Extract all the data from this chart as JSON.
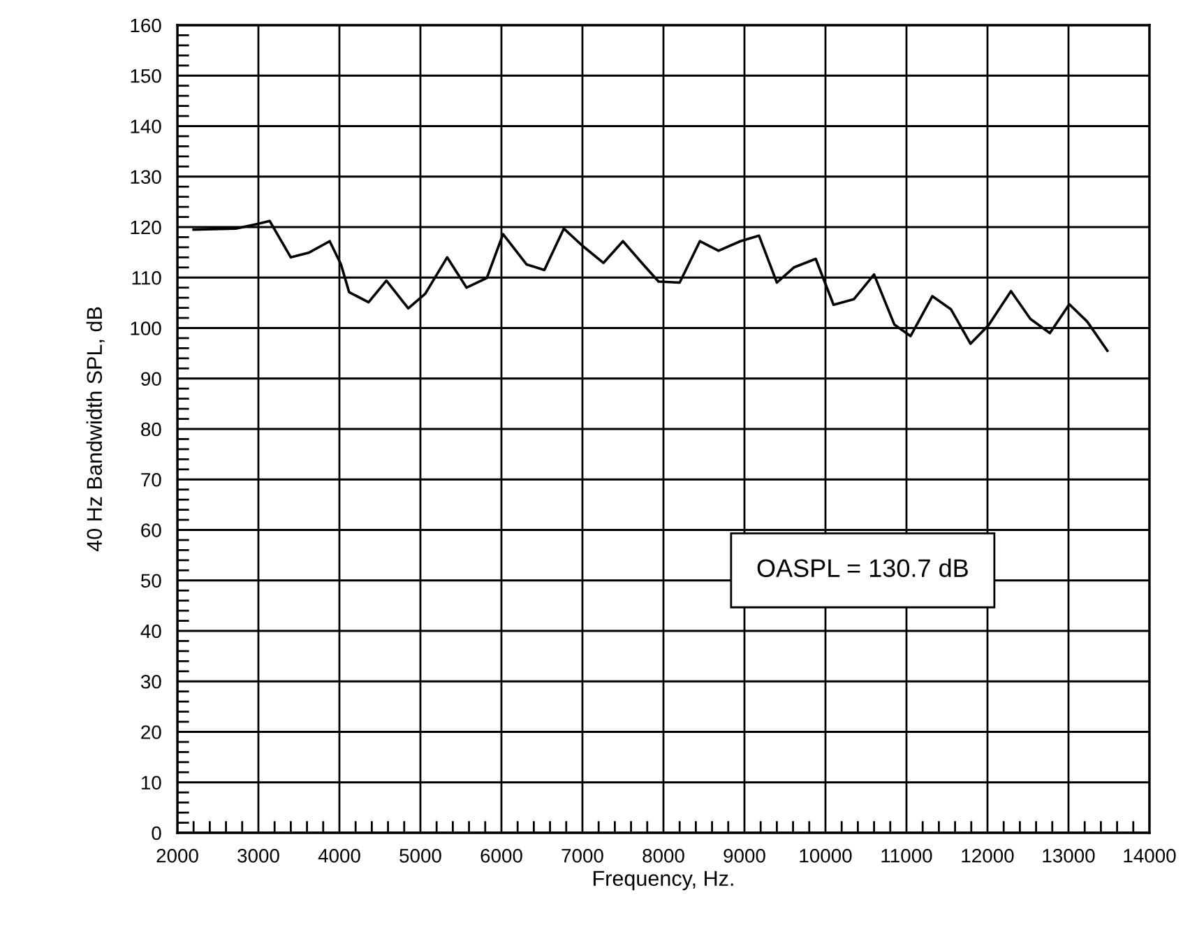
{
  "chart_data": {
    "type": "line",
    "xlabel": "Frequency, Hz.",
    "ylabel": "40 Hz Bandwidth SPL, dB",
    "x": [
      2200,
      2720,
      2980,
      3140,
      3400,
      3620,
      3880,
      4020,
      4120,
      4360,
      4580,
      4850,
      5060,
      5330,
      5570,
      5820,
      6020,
      6310,
      6530,
      6770,
      7000,
      7260,
      7500,
      7750,
      7940,
      8200,
      8450,
      8680,
      8950,
      9180,
      9400,
      9610,
      9880,
      10100,
      10350,
      10600,
      10850,
      11050,
      11320,
      11550,
      11790,
      12010,
      12290,
      12530,
      12770,
      13010,
      13230,
      13480
    ],
    "series": [
      {
        "color": "#000000",
        "values": [
          119.5,
          119.7,
          120.6,
          121.2,
          114,
          114.9,
          117.2,
          112.6,
          107.1,
          105.1,
          109.4,
          103.9,
          106.8,
          114,
          108,
          109.9,
          118.6,
          112.6,
          111.5,
          119.7,
          116.3,
          112.9,
          117.2,
          112.6,
          109.2,
          109,
          117.2,
          115.3,
          117.2,
          118.3,
          109,
          112,
          113.7,
          104.6,
          105.7,
          110.6,
          100.7,
          98.4,
          106.3,
          103.7,
          96.9,
          100.5,
          107.3,
          101.8,
          99,
          104.7,
          101.3,
          95.5
        ]
      }
    ],
    "xlim": [
      2000,
      14000
    ],
    "xticks": [
      2000,
      3000,
      4000,
      5000,
      6000,
      7000,
      8000,
      9000,
      10000,
      11000,
      12000,
      13000,
      14000
    ],
    "ylim": [
      0,
      160
    ],
    "yticks": [
      0,
      10,
      20,
      30,
      40,
      50,
      60,
      70,
      80,
      90,
      100,
      110,
      120,
      130,
      140,
      150,
      160
    ],
    "grid": true,
    "marker": "none",
    "line_style": "solid",
    "annotations": [
      "OASPL = 130.7 dB"
    ]
  }
}
